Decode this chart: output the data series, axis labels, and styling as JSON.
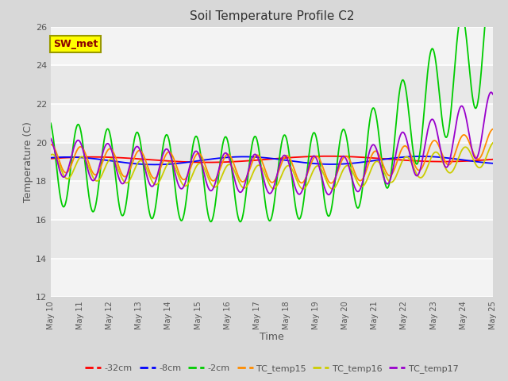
{
  "title": "Soil Temperature Profile C2",
  "xlabel": "Time",
  "ylabel": "Temperature (C)",
  "xlim": [
    0,
    15
  ],
  "ylim": [
    12,
    26
  ],
  "yticks": [
    12,
    14,
    16,
    18,
    20,
    22,
    24,
    26
  ],
  "xtick_labels": [
    "May 10",
    "May 11",
    "May 12",
    "May 13",
    "May 14",
    "May 15",
    "May 16",
    "May 17",
    "May 18",
    "May 19",
    "May 20",
    "May 21",
    "May 22",
    "May 23",
    "May 24",
    "May 25"
  ],
  "annotation_text": "SW_met",
  "annotation_color": "#8B0000",
  "annotation_bg": "#FFFF00",
  "legend_labels": [
    "-32cm",
    "-8cm",
    "-2cm",
    "TC_temp15",
    "TC_temp16",
    "TC_temp17"
  ],
  "line_colors": [
    "#FF0000",
    "#0000FF",
    "#00CC00",
    "#FF8C00",
    "#CCCC00",
    "#9900CC"
  ],
  "bg_color": "#D8D8D8",
  "plot_bg": "#E8E8E8",
  "band_color": "#DCDCDC",
  "grid_color": "#FFFFFF"
}
